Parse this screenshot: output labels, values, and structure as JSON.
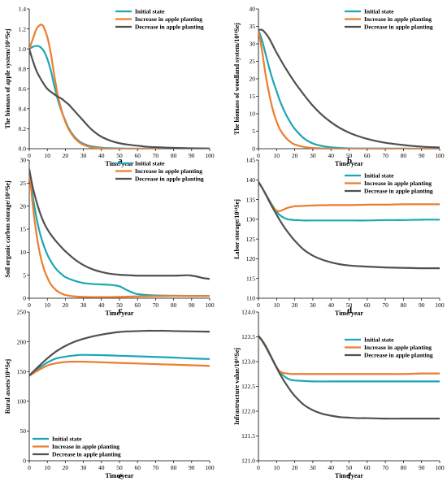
{
  "colors": {
    "initial": "#1aa7b5",
    "increase": "#ec7d2e",
    "decrease": "#505050",
    "axis": "#000000"
  },
  "chart_data": [
    {
      "type": "line",
      "panel_label": "a",
      "xlabel": "Time/year",
      "ylabel": "The biomass of apple system/10¹⁴Sej",
      "xlim": [
        0,
        100
      ],
      "ylim": [
        0,
        1.4
      ],
      "xticks": [
        "0",
        "10",
        "20",
        "30",
        "40",
        "50",
        "60",
        "70",
        "80",
        "90",
        "100"
      ],
      "yticks": [
        "0.0",
        "0.2",
        "0.4",
        "0.6",
        "0.8",
        "1.0",
        "1.2",
        "1.4"
      ],
      "legend": "top-right",
      "grid": false,
      "series": [
        {
          "name": "Initial state",
          "x": [
            0,
            2,
            4,
            6,
            8,
            10,
            12,
            14,
            16,
            18,
            20,
            22,
            25,
            28,
            30,
            33,
            36,
            40,
            45,
            50,
            60,
            100
          ],
          "y": [
            1.0,
            1.02,
            1.03,
            1.02,
            0.98,
            0.9,
            0.78,
            0.62,
            0.48,
            0.37,
            0.28,
            0.2,
            0.12,
            0.07,
            0.05,
            0.03,
            0.02,
            0.01,
            0.005,
            0.003,
            0.0,
            0.0
          ]
        },
        {
          "name": "Increase in apple planting",
          "x": [
            0,
            2,
            4,
            6,
            7,
            8,
            10,
            12,
            14,
            16,
            18,
            20,
            22,
            25,
            28,
            30,
            33,
            36,
            40,
            45,
            50,
            100
          ],
          "y": [
            1.0,
            1.1,
            1.2,
            1.24,
            1.24,
            1.22,
            1.12,
            0.95,
            0.72,
            0.52,
            0.38,
            0.27,
            0.19,
            0.11,
            0.06,
            0.04,
            0.02,
            0.01,
            0.005,
            0.0,
            0.0,
            0.0
          ]
        },
        {
          "name": "Decrease in apple planting",
          "x": [
            0,
            2,
            4,
            6,
            8,
            10,
            12,
            15,
            18,
            20,
            22,
            25,
            28,
            30,
            33,
            36,
            40,
            45,
            50,
            55,
            60,
            65,
            70,
            80,
            90,
            100
          ],
          "y": [
            1.0,
            0.88,
            0.78,
            0.71,
            0.65,
            0.6,
            0.57,
            0.53,
            0.5,
            0.47,
            0.44,
            0.38,
            0.32,
            0.28,
            0.22,
            0.17,
            0.12,
            0.08,
            0.055,
            0.04,
            0.03,
            0.02,
            0.015,
            0.008,
            0.004,
            0.002
          ]
        }
      ]
    },
    {
      "type": "line",
      "panel_label": "b",
      "xlabel": "Time/year",
      "ylabel": "The biomass of woodland system/10¹⁴Sej",
      "xlim": [
        0,
        100
      ],
      "ylim": [
        0,
        40
      ],
      "xticks": [
        "0",
        "10",
        "20",
        "30",
        "40",
        "50",
        "60",
        "70",
        "80",
        "90",
        "100"
      ],
      "yticks": [
        "0",
        "5",
        "10",
        "15",
        "20",
        "25",
        "30",
        "35",
        "40"
      ],
      "legend": "top-right",
      "grid": false,
      "series": [
        {
          "name": "Initial state",
          "x": [
            0,
            2,
            4,
            6,
            8,
            10,
            12,
            15,
            18,
            20,
            25,
            30,
            35,
            40,
            45,
            50,
            60,
            100
          ],
          "y": [
            34,
            31,
            27,
            23,
            19.5,
            16.5,
            13.5,
            10,
            7.2,
            5.7,
            3,
            1.5,
            0.8,
            0.4,
            0.2,
            0.1,
            0.05,
            0.0
          ]
        },
        {
          "name": "Increase in apple planting",
          "x": [
            0,
            2,
            4,
            6,
            8,
            10,
            12,
            15,
            18,
            20,
            25,
            30,
            35,
            40,
            50,
            100
          ],
          "y": [
            34,
            28,
            21,
            15.5,
            11,
            7.8,
            5.4,
            3.2,
            1.8,
            1.2,
            0.5,
            0.2,
            0.1,
            0.05,
            0.0,
            0.0
          ]
        },
        {
          "name": "Decrease in apple planting",
          "x": [
            0,
            2,
            4,
            6,
            8,
            10,
            15,
            20,
            25,
            30,
            35,
            40,
            45,
            50,
            55,
            60,
            65,
            70,
            75,
            80,
            85,
            90,
            95,
            100
          ],
          "y": [
            34,
            34,
            33,
            31.5,
            29.5,
            27.5,
            23,
            19,
            15.5,
            12.3,
            9.7,
            7.6,
            5.9,
            4.6,
            3.6,
            2.8,
            2.2,
            1.7,
            1.35,
            1.05,
            0.8,
            0.6,
            0.45,
            0.35
          ]
        }
      ]
    },
    {
      "type": "line",
      "panel_label": "c",
      "xlabel": "Time/year",
      "ylabel": "Soil organic carbon storage/10¹⁴Sej",
      "xlim": [
        0,
        100
      ],
      "ylim": [
        0,
        30
      ],
      "xticks": [
        "0",
        "10",
        "20",
        "30",
        "40",
        "50",
        "60",
        "70",
        "80",
        "90",
        "100"
      ],
      "yticks": [
        "0",
        "5",
        "10",
        "15",
        "20",
        "25",
        "30"
      ],
      "legend": "top-right",
      "grid": false,
      "series": [
        {
          "name": "Initial state",
          "x": [
            0,
            2,
            4,
            6,
            8,
            10,
            12,
            15,
            18,
            20,
            25,
            30,
            35,
            40,
            45,
            50,
            52,
            55,
            58,
            60,
            65,
            70,
            80,
            90,
            100
          ],
          "y": [
            28,
            22,
            17.5,
            14,
            11.5,
            9.5,
            8,
            6.3,
            5.2,
            4.6,
            3.8,
            3.3,
            3.1,
            3.0,
            2.9,
            2.6,
            2.2,
            1.6,
            1.1,
            0.9,
            0.7,
            0.6,
            0.55,
            0.5,
            0.5
          ]
        },
        {
          "name": "Increase in apple planting",
          "x": [
            0,
            2,
            4,
            6,
            8,
            10,
            12,
            15,
            18,
            20,
            25,
            30,
            40,
            50,
            60,
            70,
            80,
            90,
            100
          ],
          "y": [
            28,
            20,
            14,
            9.5,
            6.5,
            4.5,
            3,
            1.7,
            1,
            0.7,
            0.4,
            0.3,
            0.25,
            0.3,
            0.4,
            0.45,
            0.5,
            0.5,
            0.5
          ]
        },
        {
          "name": "Decrease in apple planting",
          "x": [
            0,
            2,
            4,
            6,
            8,
            10,
            12,
            15,
            18,
            20,
            25,
            30,
            35,
            40,
            45,
            50,
            55,
            60,
            65,
            70,
            75,
            80,
            85,
            88,
            90,
            93,
            96,
            100
          ],
          "y": [
            28,
            24,
            21,
            18.5,
            16.5,
            15,
            13.8,
            12.3,
            11,
            10.2,
            8.5,
            7.2,
            6.3,
            5.7,
            5.3,
            5.1,
            5,
            4.9,
            4.9,
            4.9,
            4.9,
            4.9,
            4.95,
            5,
            4.9,
            4.7,
            4.4,
            4.2
          ]
        }
      ]
    },
    {
      "type": "line",
      "panel_label": "d",
      "xlabel": "Time/year",
      "ylabel": "Labor storage/10¹⁴Sej",
      "xlim": [
        0,
        100
      ],
      "ylim": [
        110,
        145
      ],
      "xticks": [
        "0",
        "10",
        "20",
        "30",
        "40",
        "50",
        "60",
        "70",
        "80",
        "90",
        "100"
      ],
      "yticks": [
        "110",
        "115",
        "120",
        "125",
        "130",
        "135",
        "140",
        "145"
      ],
      "legend": "top-right",
      "grid": false,
      "series": [
        {
          "name": "Initial state",
          "x": [
            0,
            2,
            4,
            6,
            8,
            10,
            12,
            14,
            16,
            18,
            20,
            25,
            30,
            40,
            50,
            60,
            70,
            80,
            90,
            100
          ],
          "y": [
            139.5,
            138,
            136.4,
            134.8,
            133.3,
            132,
            131,
            130.4,
            130,
            129.9,
            129.8,
            129.7,
            129.7,
            129.7,
            129.7,
            129.7,
            129.8,
            129.8,
            129.9,
            129.9
          ]
        },
        {
          "name": "Increase in apple planting",
          "x": [
            0,
            2,
            4,
            6,
            8,
            10,
            12,
            14,
            16,
            18,
            20,
            25,
            30,
            40,
            50,
            60,
            70,
            80,
            90,
            100
          ],
          "y": [
            139.5,
            138,
            136.3,
            134.6,
            133.1,
            132.2,
            132.1,
            132.5,
            132.9,
            133.1,
            133.3,
            133.4,
            133.5,
            133.6,
            133.6,
            133.7,
            133.7,
            133.8,
            133.8,
            133.8
          ]
        },
        {
          "name": "Decrease in apple planting",
          "x": [
            0,
            2,
            4,
            6,
            8,
            10,
            12,
            15,
            18,
            20,
            25,
            30,
            35,
            40,
            45,
            50,
            60,
            70,
            80,
            90,
            100
          ],
          "y": [
            139.5,
            138,
            136.3,
            134.5,
            132.8,
            131.2,
            129.6,
            127.5,
            125.7,
            124.6,
            122.3,
            120.8,
            119.8,
            119.1,
            118.6,
            118.3,
            118,
            117.8,
            117.7,
            117.6,
            117.6
          ]
        }
      ]
    },
    {
      "type": "line",
      "panel_label": "e",
      "xlabel": "Time/year",
      "ylabel": "Rural assets/10¹⁴Sej",
      "xlim": [
        0,
        100
      ],
      "ylim": [
        0,
        250
      ],
      "xticks": [
        "0",
        "10",
        "20",
        "30",
        "40",
        "50",
        "60",
        "70",
        "80",
        "90",
        "100"
      ],
      "yticks": [
        "0",
        "50",
        "100",
        "150",
        "200",
        "250"
      ],
      "legend": "bottom-left",
      "grid": false,
      "series": [
        {
          "name": "Initial state",
          "x": [
            0,
            5,
            10,
            15,
            20,
            25,
            30,
            40,
            50,
            60,
            70,
            80,
            90,
            100
          ],
          "y": [
            143,
            155,
            165,
            172,
            175,
            177,
            178,
            177.5,
            176.5,
            175.5,
            174.5,
            173.5,
            172,
            171
          ]
        },
        {
          "name": "Increase in apple planting",
          "x": [
            0,
            5,
            10,
            15,
            20,
            25,
            30,
            40,
            50,
            60,
            70,
            80,
            90,
            100
          ],
          "y": [
            143,
            152,
            160,
            164,
            166,
            166.5,
            166.5,
            165.5,
            164.5,
            163.5,
            162.5,
            161.5,
            160.5,
            159.5
          ]
        },
        {
          "name": "Decrease in apple planting",
          "x": [
            0,
            5,
            10,
            15,
            20,
            25,
            30,
            35,
            40,
            45,
            50,
            55,
            60,
            65,
            70,
            75,
            80,
            90,
            100
          ],
          "y": [
            143,
            158,
            172,
            184,
            193,
            200,
            205,
            209,
            212,
            214.5,
            216.5,
            217.5,
            218,
            218.5,
            218.5,
            218.5,
            218,
            217.5,
            217
          ]
        }
      ]
    },
    {
      "type": "line",
      "panel_label": "f",
      "xlabel": "Time/year",
      "ylabel": "Infrastructure  value/10¹⁴Sej",
      "xlim": [
        0,
        100
      ],
      "ylim": [
        121.0,
        124.0
      ],
      "xticks": [
        "0",
        "10",
        "20",
        "30",
        "40",
        "50",
        "60",
        "70",
        "80",
        "90",
        "100"
      ],
      "yticks": [
        "121.0",
        "121.5",
        "122.0",
        "122.5",
        "123.0",
        "123.5",
        "124.0"
      ],
      "legend": "top-right",
      "grid": false,
      "series": [
        {
          "name": "Initial state",
          "x": [
            0,
            2,
            4,
            6,
            8,
            10,
            12,
            14,
            16,
            18,
            20,
            25,
            30,
            40,
            50,
            60,
            70,
            80,
            90,
            100
          ],
          "y": [
            123.52,
            123.43,
            123.32,
            123.18,
            123.03,
            122.89,
            122.78,
            122.71,
            122.66,
            122.63,
            122.62,
            122.61,
            122.6,
            122.6,
            122.6,
            122.6,
            122.6,
            122.6,
            122.6,
            122.6
          ]
        },
        {
          "name": "Increase in apple planting",
          "x": [
            0,
            2,
            4,
            6,
            8,
            10,
            12,
            14,
            16,
            18,
            20,
            25,
            30,
            40,
            50,
            60,
            70,
            80,
            90,
            100
          ],
          "y": [
            123.52,
            123.43,
            123.31,
            123.17,
            123.02,
            122.88,
            122.8,
            122.77,
            122.76,
            122.75,
            122.75,
            122.75,
            122.75,
            122.75,
            122.75,
            122.75,
            122.75,
            122.75,
            122.76,
            122.76
          ]
        },
        {
          "name": "Decrease in apple planting",
          "x": [
            0,
            2,
            4,
            6,
            8,
            10,
            12,
            15,
            18,
            20,
            25,
            30,
            35,
            40,
            45,
            50,
            55,
            60,
            70,
            80,
            90,
            100
          ],
          "y": [
            123.52,
            123.42,
            123.3,
            123.16,
            123.02,
            122.88,
            122.74,
            122.56,
            122.4,
            122.31,
            122.13,
            122.02,
            121.95,
            121.91,
            121.88,
            121.87,
            121.86,
            121.86,
            121.85,
            121.85,
            121.85,
            121.85
          ]
        }
      ]
    }
  ]
}
